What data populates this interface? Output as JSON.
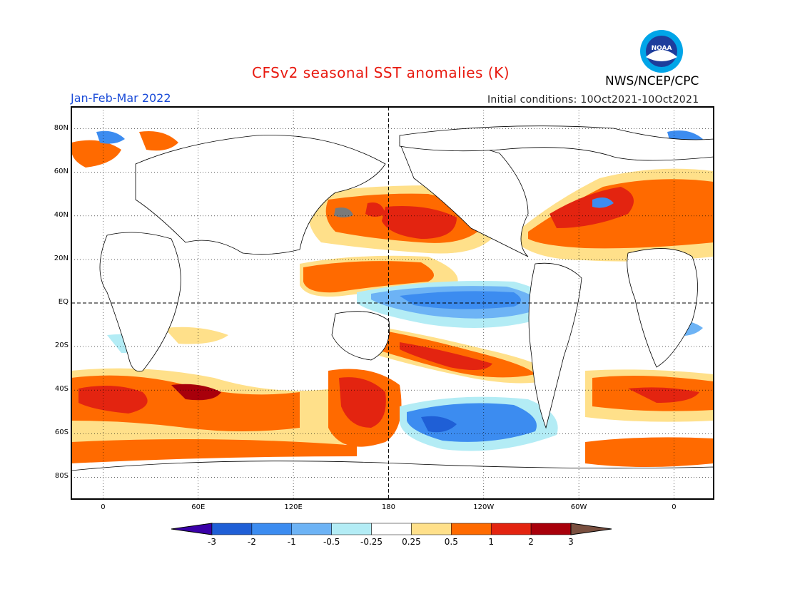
{
  "header": {
    "title": "CFSv2 seasonal SST anomalies (K)",
    "organization": "NWS/NCEP/CPC",
    "period": "Jan-Feb-Mar 2022",
    "initial_conditions": "Initial conditions: 10Oct2021-10Oct2021"
  },
  "logo": {
    "icon": "noaa-logo-icon",
    "text": "NOAA"
  },
  "map": {
    "lat_labels": [
      "80N",
      "60N",
      "40N",
      "20N",
      "EQ",
      "20S",
      "40S",
      "60S",
      "80S"
    ],
    "lat_values": [
      80,
      60,
      40,
      20,
      0,
      -20,
      -40,
      -60,
      -80
    ],
    "lon_labels": [
      "0",
      "60E",
      "120E",
      "180",
      "120W",
      "60W",
      "0"
    ],
    "lon_values": [
      0,
      60,
      120,
      180,
      240,
      300,
      360
    ],
    "lon_range": [
      -20,
      385
    ],
    "lat_range": [
      -90,
      90
    ],
    "grid": "dotted",
    "continents": "white"
  },
  "colorbar": {
    "labels": [
      "-3",
      "-2",
      "-1",
      "-0.5",
      "-0.25",
      "0.25",
      "0.5",
      "1",
      "2",
      "3"
    ],
    "colors": [
      "#3a00a8",
      "#1f5fd6",
      "#3c8cf0",
      "#6db3f5",
      "#b3ecf5",
      "#ffffff",
      "#ffe08a",
      "#ff6a00",
      "#e32410",
      "#a8000b",
      "#7a5040"
    ]
  }
}
